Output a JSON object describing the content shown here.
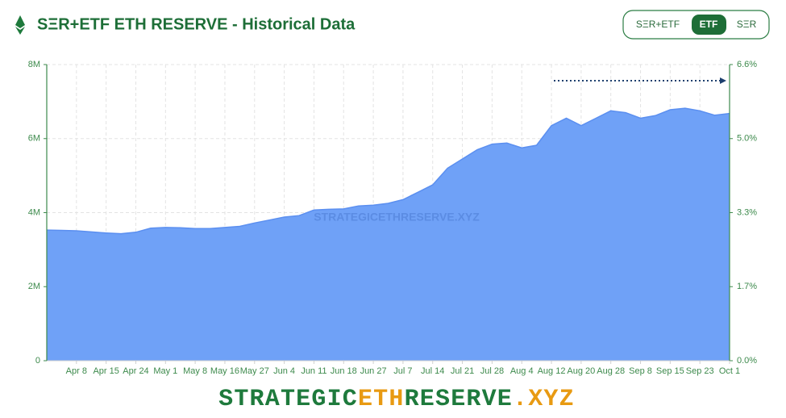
{
  "chart_data": {
    "type": "area",
    "title": "SΞR+ETF ETH RESERVE - Historical Data",
    "watermark": "STRATEGICETHRESERVE.XYZ",
    "color": "#6fa1f7",
    "categories": [
      null,
      null,
      "Apr 8",
      null,
      "Apr 15",
      null,
      "Apr 24",
      null,
      "May 1",
      null,
      "May 8",
      null,
      "May 16",
      null,
      "May 27",
      null,
      "Jun 4",
      null,
      "Jun 11",
      null,
      "Jun 18",
      null,
      "Jun 27",
      null,
      "Jul 7",
      null,
      "Jul 14",
      null,
      "Jul 21",
      null,
      "Jul 28",
      null,
      "Aug 4",
      null,
      "Aug 12",
      null,
      "Aug 20",
      null,
      "Aug 28",
      null,
      "Sep 8",
      null,
      "Sep 15",
      null,
      "Sep 23",
      null,
      "Oct 1"
    ],
    "values": [
      3530000,
      3520000,
      3510000,
      3480000,
      3450000,
      3430000,
      3470000,
      3580000,
      3600000,
      3590000,
      3570000,
      3570000,
      3600000,
      3630000,
      3720000,
      3800000,
      3880000,
      3920000,
      4070000,
      4090000,
      4100000,
      4180000,
      4200000,
      4250000,
      4350000,
      4550000,
      4750000,
      5200000,
      5450000,
      5700000,
      5850000,
      5880000,
      5750000,
      5820000,
      6350000,
      6550000,
      6350000,
      6550000,
      6750000,
      6700000,
      6550000,
      6620000,
      6780000,
      6820000,
      6750000,
      6630000,
      6680000
    ],
    "ylim": [
      0,
      8000000
    ],
    "yticks": [
      0,
      {
        "value": 2000000,
        "label": "2M"
      },
      {
        "value": 4000000,
        "label": "4M"
      },
      {
        "value": 6000000,
        "label": "6M"
      },
      {
        "value": 8000000,
        "label": "8M"
      }
    ],
    "y2lim": [
      0,
      6.6
    ],
    "y2ticks": [
      {
        "value": 0,
        "label": "0.0%"
      },
      {
        "value": 1.65,
        "label": "1.7%"
      },
      {
        "value": 3.3,
        "label": "3.3%"
      },
      {
        "value": 4.95,
        "label": "5.0%"
      },
      {
        "value": 6.6,
        "label": "6.6%"
      }
    ],
    "grid": true
  },
  "controls": {
    "options": [
      "SΞR+ETF",
      "ETF",
      "SΞR"
    ],
    "active": 1
  },
  "footer": {
    "brand": [
      "STRATEGIC",
      "ETH",
      "RESERVE",
      ".XYZ"
    ]
  }
}
